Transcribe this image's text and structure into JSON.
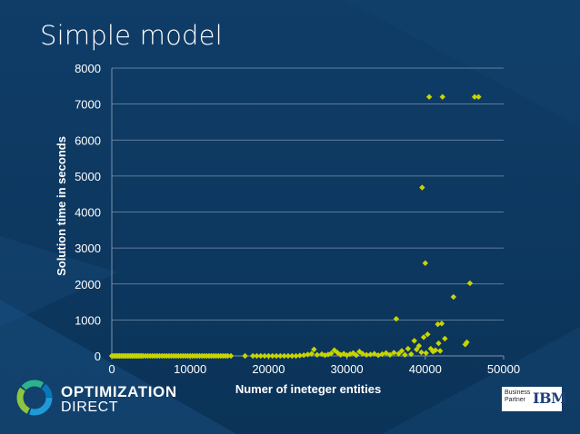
{
  "slide": {
    "title": "Simple model",
    "logo": {
      "name_line1": "OPTIMIZATION",
      "name_line2": "DIRECT",
      "icon": "circular-ring-logo-icon"
    },
    "ibm_badge": {
      "line1": "Business",
      "line2": "Partner",
      "brand": "IBM"
    },
    "colors": {
      "background": "#0d3a63",
      "marker": "#c8d400",
      "gridline": "#7a93ad"
    }
  },
  "chart_data": {
    "type": "scatter",
    "title": "",
    "xlabel": "Numer of ineteger entities",
    "ylabel": "Solution time in seconds",
    "xlim": [
      0,
      50000
    ],
    "ylim": [
      0,
      8000
    ],
    "x_ticks": [
      "0",
      "10000",
      "20000",
      "30000",
      "40000",
      "50000"
    ],
    "y_ticks": [
      "0",
      "1000",
      "2000",
      "3000",
      "4000",
      "5000",
      "6000",
      "7000",
      "8000"
    ],
    "grid": "horizontal",
    "legend": "none",
    "marker": "diamond",
    "series": [
      {
        "points": [
          [
            0,
            0
          ],
          [
            200,
            0
          ],
          [
            400,
            0
          ],
          [
            600,
            0
          ],
          [
            800,
            0
          ],
          [
            1000,
            0
          ],
          [
            1200,
            0
          ],
          [
            1400,
            0
          ],
          [
            1600,
            0
          ],
          [
            1800,
            0
          ],
          [
            2000,
            0
          ],
          [
            2200,
            0
          ],
          [
            2400,
            0
          ],
          [
            2600,
            0
          ],
          [
            2800,
            0
          ],
          [
            3000,
            0
          ],
          [
            3200,
            0
          ],
          [
            3400,
            0
          ],
          [
            3600,
            0
          ],
          [
            3800,
            0
          ],
          [
            4000,
            0
          ],
          [
            4300,
            0
          ],
          [
            4600,
            0
          ],
          [
            4900,
            0
          ],
          [
            5200,
            0
          ],
          [
            5500,
            0
          ],
          [
            5800,
            0
          ],
          [
            6100,
            0
          ],
          [
            6400,
            0
          ],
          [
            6700,
            0
          ],
          [
            7000,
            0
          ],
          [
            7300,
            0
          ],
          [
            7600,
            0
          ],
          [
            7900,
            0
          ],
          [
            8200,
            0
          ],
          [
            8500,
            0
          ],
          [
            8800,
            0
          ],
          [
            9100,
            0
          ],
          [
            9400,
            0
          ],
          [
            9700,
            0
          ],
          [
            10000,
            0
          ],
          [
            10300,
            0
          ],
          [
            10600,
            0
          ],
          [
            10900,
            0
          ],
          [
            11200,
            0
          ],
          [
            11500,
            0
          ],
          [
            11800,
            0
          ],
          [
            12100,
            0
          ],
          [
            12400,
            0
          ],
          [
            12700,
            0
          ],
          [
            13000,
            0
          ],
          [
            13300,
            0
          ],
          [
            13600,
            0
          ],
          [
            13900,
            0
          ],
          [
            14200,
            0
          ],
          [
            14500,
            0
          ],
          [
            14800,
            0
          ],
          [
            15200,
            0
          ],
          [
            17000,
            0
          ],
          [
            18000,
            0
          ],
          [
            18500,
            0
          ],
          [
            19000,
            0
          ],
          [
            19500,
            0
          ],
          [
            20000,
            0
          ],
          [
            20500,
            0
          ],
          [
            21000,
            0
          ],
          [
            21500,
            0
          ],
          [
            22000,
            0
          ],
          [
            22500,
            0
          ],
          [
            23000,
            0
          ],
          [
            23500,
            0
          ],
          [
            24000,
            10
          ],
          [
            24500,
            20
          ],
          [
            25000,
            40
          ],
          [
            25500,
            60
          ],
          [
            25800,
            180
          ],
          [
            26200,
            30
          ],
          [
            26800,
            50
          ],
          [
            27200,
            20
          ],
          [
            27600,
            40
          ],
          [
            28000,
            70
          ],
          [
            28400,
            160
          ],
          [
            28800,
            90
          ],
          [
            29200,
            30
          ],
          [
            29600,
            60
          ],
          [
            30000,
            20
          ],
          [
            30400,
            50
          ],
          [
            30800,
            80
          ],
          [
            31200,
            20
          ],
          [
            31600,
            120
          ],
          [
            32000,
            60
          ],
          [
            32500,
            30
          ],
          [
            33000,
            40
          ],
          [
            33500,
            60
          ],
          [
            34000,
            20
          ],
          [
            34500,
            50
          ],
          [
            35000,
            80
          ],
          [
            35500,
            30
          ],
          [
            36000,
            90
          ],
          [
            36300,
            1030
          ],
          [
            36600,
            60
          ],
          [
            37000,
            140
          ],
          [
            37400,
            30
          ],
          [
            37800,
            200
          ],
          [
            38200,
            50
          ],
          [
            38600,
            420
          ],
          [
            38900,
            180
          ],
          [
            39200,
            280
          ],
          [
            39500,
            100
          ],
          [
            39600,
            4680
          ],
          [
            39800,
            520
          ],
          [
            40000,
            2580
          ],
          [
            40100,
            80
          ],
          [
            40300,
            600
          ],
          [
            40500,
            7200
          ],
          [
            40700,
            200
          ],
          [
            41000,
            120
          ],
          [
            41300,
            160
          ],
          [
            41600,
            880
          ],
          [
            41700,
            350
          ],
          [
            41900,
            140
          ],
          [
            42100,
            900
          ],
          [
            42200,
            7200
          ],
          [
            42500,
            480
          ],
          [
            43600,
            1640
          ],
          [
            45100,
            320
          ],
          [
            45300,
            380
          ],
          [
            45700,
            2020
          ],
          [
            46300,
            7200
          ],
          [
            46800,
            7200
          ]
        ]
      }
    ]
  }
}
